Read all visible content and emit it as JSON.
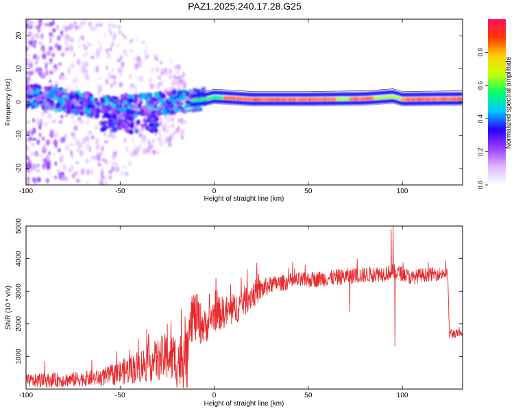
{
  "figure": {
    "title": "PAZ1.2025.240.17.28.G25"
  },
  "chart_data": [
    {
      "id": "spectrogram",
      "type": "heatmap",
      "xlabel": "Height of straight line (km)",
      "ylabel": "Frequency (Hz)",
      "xlim": [
        -100,
        132
      ],
      "ylim": [
        -25,
        25
      ],
      "xticks": [
        -100,
        -50,
        0,
        50,
        100
      ],
      "yticks": [
        -20,
        -10,
        0,
        10,
        20
      ],
      "grid": false,
      "colorbar": {
        "label": "Normalized spectral amplitude",
        "range": [
          0,
          1
        ],
        "ticks": [
          0.0,
          0.2,
          0.4,
          0.6,
          0.8
        ],
        "colormap": [
          "#ffffff",
          "#e0b8ff",
          "#9a3dff",
          "#2a00ff",
          "#00c8ff",
          "#00ff6a",
          "#c8ff00",
          "#ffd000",
          "#ff3a00",
          "#ff1060"
        ]
      },
      "ridge": {
        "description_points": [
          [
            -100,
            2.0
          ],
          [
            -80,
            0.5
          ],
          [
            -60,
            -1.5
          ],
          [
            -40,
            -1.0
          ],
          [
            -20,
            0.0
          ],
          [
            -5,
            0.8
          ],
          [
            0,
            1.5
          ],
          [
            20,
            0.8
          ],
          [
            50,
            0.8
          ],
          [
            80,
            1.0
          ],
          [
            95,
            1.6
          ],
          [
            100,
            0.8
          ],
          [
            132,
            1.0
          ]
        ]
      }
    },
    {
      "id": "snr",
      "type": "line",
      "xlabel": "Height of straight line (km)",
      "ylabel": "SNR (10 * v/v)",
      "xlim": [
        -100,
        132
      ],
      "ylim": [
        0,
        5000
      ],
      "xticks": [
        -100,
        -50,
        0,
        50,
        100
      ],
      "yticks": [
        1000,
        2000,
        3000,
        4000,
        5000
      ],
      "grid": false,
      "line_color": "#e8292c",
      "series": [
        {
          "baseline": [
            [
              -100,
              250
            ],
            [
              -80,
              280
            ],
            [
              -60,
              350
            ],
            [
              -50,
              500
            ],
            [
              -40,
              700
            ],
            [
              -30,
              900
            ],
            [
              -25,
              1000
            ],
            [
              -20,
              900
            ],
            [
              -14,
              800
            ],
            [
              -12,
              2300
            ],
            [
              -5,
              1900
            ],
            [
              0,
              2300
            ],
            [
              10,
              2400
            ],
            [
              20,
              2900
            ],
            [
              30,
              3200
            ],
            [
              40,
              3300
            ],
            [
              60,
              3400
            ],
            [
              80,
              3500
            ],
            [
              90,
              3550
            ],
            [
              95,
              3600
            ],
            [
              100,
              3550
            ],
            [
              105,
              3400
            ],
            [
              110,
              3500
            ],
            [
              124,
              3550
            ],
            [
              125,
              1700
            ],
            [
              132,
              1700
            ]
          ],
          "noise": [
            [
              -100,
              200
            ],
            [
              -60,
              250
            ],
            [
              -30,
              650
            ],
            [
              -14,
              1000
            ],
            [
              -5,
              550
            ],
            [
              20,
              450
            ],
            [
              30,
              250
            ],
            [
              90,
              250
            ],
            [
              124,
              200
            ],
            [
              132,
              80
            ]
          ],
          "spikes": [
            [
              -90,
              850
            ],
            [
              -65,
              900
            ],
            [
              -45,
              1200
            ],
            [
              -35,
              1500
            ],
            [
              -25,
              2000
            ],
            [
              -23,
              2100
            ],
            [
              -15,
              1700
            ],
            [
              -9,
              2900
            ],
            [
              1,
              3400
            ],
            [
              72,
              2350
            ],
            [
              76,
              4000
            ],
            [
              94,
              4900
            ],
            [
              95,
              5000
            ],
            [
              96,
              1300
            ]
          ]
        }
      ]
    }
  ]
}
